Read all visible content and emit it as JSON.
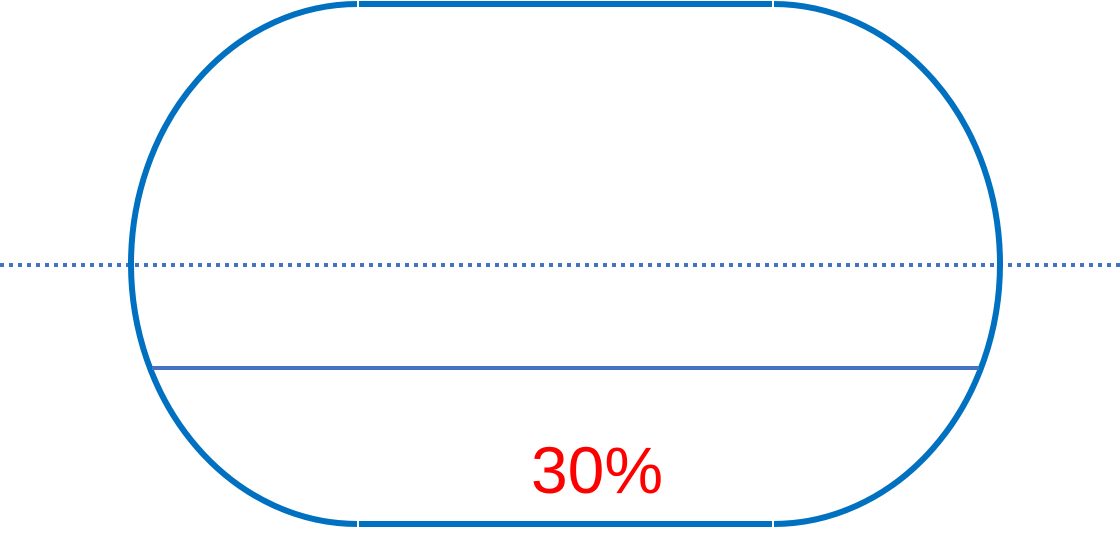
{
  "diagram": {
    "fill_label": "30%",
    "fill_fraction": 0.3,
    "colors": {
      "outline": "#0070C0",
      "fill_line": "#4472C4",
      "center_line": "#4472C4",
      "label": "#FF0000",
      "joint": "#ffffff"
    }
  }
}
